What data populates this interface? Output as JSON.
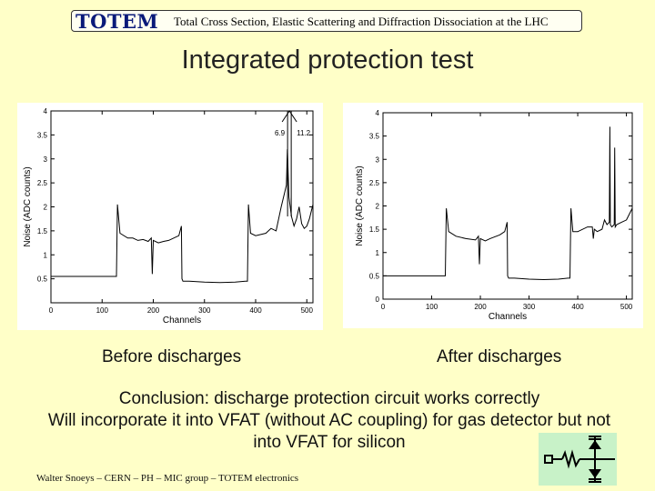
{
  "header": {
    "logo": "TOTEM",
    "title": "Total Cross Section, Elastic Scattering and Diffraction Dissociation at the LHC"
  },
  "slide_title": "Integrated protection test",
  "captions": {
    "before": "Before discharges",
    "after": "After discharges"
  },
  "conclusion": {
    "line1": "Conclusion: discharge protection circuit works correctly",
    "line2": "Will incorporate it into VFAT (without AC coupling) for gas detector but not",
    "line3": "into VFAT for silicon"
  },
  "footer": "Walter Snoeys – CERN – PH – MIC group – TOTEM electronics",
  "chart_data": [
    {
      "type": "line",
      "xlabel": "Channels",
      "ylabel": "Noise (ADC counts)",
      "xlim": [
        0,
        512
      ],
      "ylim": [
        0,
        4
      ],
      "xticks": [
        0,
        100,
        200,
        300,
        400,
        500
      ],
      "yticks": [
        0.5,
        1,
        1.5,
        2,
        2.5,
        3,
        3.5,
        4
      ],
      "annotations": [
        "6.9",
        "11.2"
      ],
      "series": [
        {
          "x": [
            0,
            128,
            130,
            135,
            150,
            160,
            170,
            180,
            190,
            196,
            198,
            200,
            210,
            220,
            230,
            240,
            250,
            255,
            256,
            258,
            270,
            300,
            330,
            360,
            380,
            384,
            386,
            390,
            400,
            420,
            430,
            440,
            450,
            460,
            462,
            465,
            470,
            475,
            480,
            485,
            490,
            495,
            500,
            505,
            512
          ],
          "y": [
            0.55,
            0.55,
            2.05,
            1.45,
            1.35,
            1.35,
            1.3,
            1.32,
            1.28,
            1.35,
            0.6,
            1.3,
            1.25,
            1.28,
            1.3,
            1.35,
            1.4,
            1.6,
            0.5,
            0.45,
            0.45,
            0.43,
            0.42,
            0.43,
            0.45,
            0.45,
            2.05,
            1.45,
            1.4,
            1.45,
            1.55,
            1.5,
            2.0,
            2.45,
            3.2,
            2.2,
            1.8,
            1.6,
            1.75,
            2.0,
            1.65,
            1.55,
            1.6,
            1.75,
            2.05
          ]
        }
      ]
    },
    {
      "type": "line",
      "xlabel": "Channels",
      "ylabel": "Noise (ADC counts)",
      "xlim": [
        0,
        512
      ],
      "ylim": [
        0,
        4
      ],
      "xticks": [
        0,
        100,
        200,
        300,
        400,
        500
      ],
      "yticks": [
        0,
        0.5,
        1,
        1.5,
        2,
        2.5,
        3,
        3.5,
        4
      ],
      "series": [
        {
          "x": [
            0,
            128,
            130,
            135,
            150,
            170,
            190,
            196,
            198,
            200,
            210,
            220,
            240,
            250,
            255,
            256,
            258,
            270,
            300,
            330,
            360,
            380,
            384,
            386,
            390,
            400,
            420,
            430,
            432,
            434,
            440,
            450,
            455,
            460,
            465,
            466,
            467,
            470,
            475,
            476,
            477,
            480,
            490,
            500,
            512
          ],
          "y": [
            0.5,
            0.5,
            1.95,
            1.45,
            1.35,
            1.3,
            1.27,
            1.35,
            0.75,
            1.3,
            1.25,
            1.3,
            1.38,
            1.45,
            1.65,
            0.5,
            0.45,
            0.45,
            0.43,
            0.42,
            0.43,
            0.45,
            0.45,
            1.95,
            1.45,
            1.45,
            1.55,
            1.55,
            1.3,
            1.5,
            1.45,
            1.5,
            1.7,
            1.6,
            1.65,
            3.7,
            1.6,
            1.55,
            1.6,
            3.25,
            1.55,
            1.6,
            1.65,
            1.7,
            1.95
          ]
        }
      ]
    }
  ]
}
